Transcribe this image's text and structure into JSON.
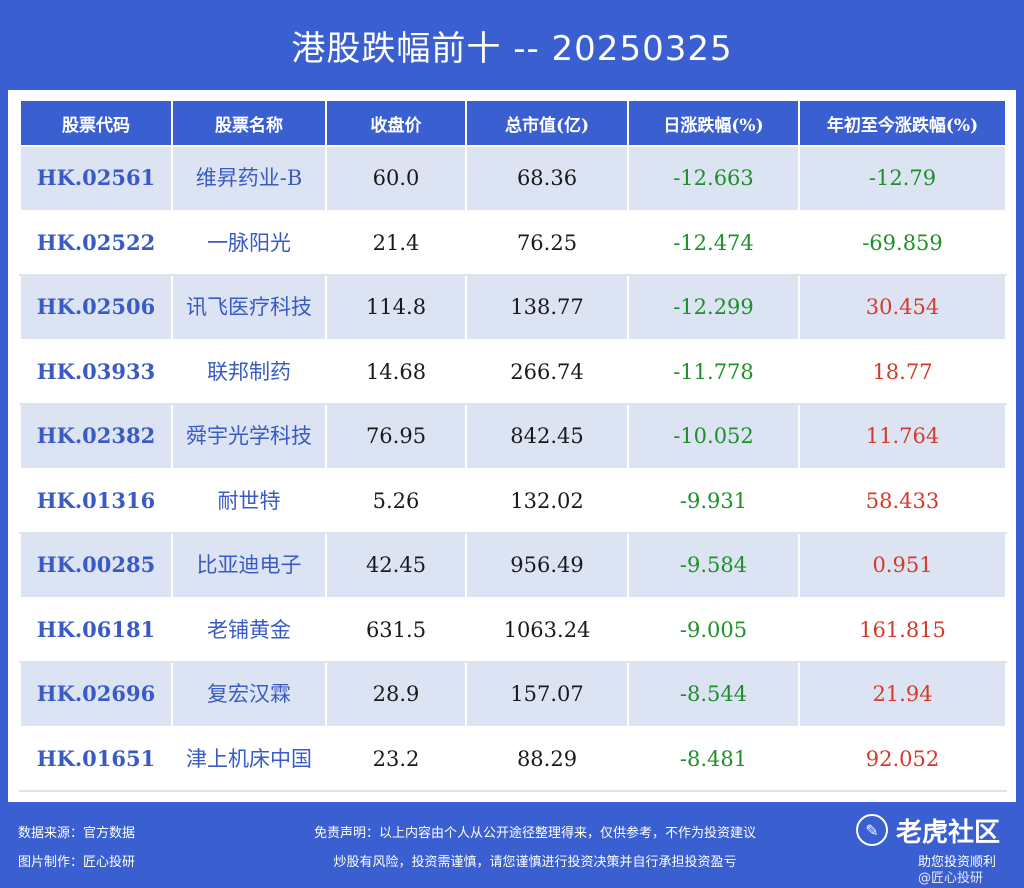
{
  "title": "港股跌幅前十 -- 20250325",
  "table": {
    "headers": [
      "股票代码",
      "股票名称",
      "收盘价",
      "总市值(亿)",
      "日涨跌幅(%)",
      "年初至今涨跌幅(%)"
    ],
    "rows": [
      {
        "code": "HK.02561",
        "name": "维昇药业-B",
        "close": "60.0",
        "cap": "68.36",
        "day": "-12.663",
        "ytd": "-12.79",
        "ytd_sign": "neg"
      },
      {
        "code": "HK.02522",
        "name": "一脉阳光",
        "close": "21.4",
        "cap": "76.25",
        "day": "-12.474",
        "ytd": "-69.859",
        "ytd_sign": "neg"
      },
      {
        "code": "HK.02506",
        "name": "讯飞医疗科技",
        "close": "114.8",
        "cap": "138.77",
        "day": "-12.299",
        "ytd": "30.454",
        "ytd_sign": "pos"
      },
      {
        "code": "HK.03933",
        "name": "联邦制药",
        "close": "14.68",
        "cap": "266.74",
        "day": "-11.778",
        "ytd": "18.77",
        "ytd_sign": "pos"
      },
      {
        "code": "HK.02382",
        "name": "舜宇光学科技",
        "close": "76.95",
        "cap": "842.45",
        "day": "-10.052",
        "ytd": "11.764",
        "ytd_sign": "pos"
      },
      {
        "code": "HK.01316",
        "name": "耐世特",
        "close": "5.26",
        "cap": "132.02",
        "day": "-9.931",
        "ytd": "58.433",
        "ytd_sign": "pos"
      },
      {
        "code": "HK.00285",
        "name": "比亚迪电子",
        "close": "42.45",
        "cap": "956.49",
        "day": "-9.584",
        "ytd": "0.951",
        "ytd_sign": "pos"
      },
      {
        "code": "HK.06181",
        "name": "老铺黄金",
        "close": "631.5",
        "cap": "1063.24",
        "day": "-9.005",
        "ytd": "161.815",
        "ytd_sign": "pos"
      },
      {
        "code": "HK.02696",
        "name": "复宏汉霖",
        "close": "28.9",
        "cap": "157.07",
        "day": "-8.544",
        "ytd": "21.94",
        "ytd_sign": "pos"
      },
      {
        "code": "HK.01651",
        "name": "津上机床中国",
        "close": "23.2",
        "cap": "88.29",
        "day": "-8.481",
        "ytd": "92.052",
        "ytd_sign": "pos"
      }
    ]
  },
  "footer": {
    "source": "数据来源：官方数据",
    "maker": "图片制作：匠心投研",
    "disclaimer1": "免责声明：以上内容由个人从公开途径整理得来，仅供参考，不作为投资建议",
    "disclaimer2": "炒股有风险，投资需谨慎，请您谨慎进行投资决策并自行承担投资盈亏",
    "watermark_brand": "老虎社区",
    "watermark_line1": "助您投资顺利",
    "watermark_line2": "@匠心投研"
  },
  "colors": {
    "background": "#3a5fd0",
    "negative": "#1e8f2a",
    "positive": "#d43a2a",
    "code_text": "#3a5bc4"
  }
}
